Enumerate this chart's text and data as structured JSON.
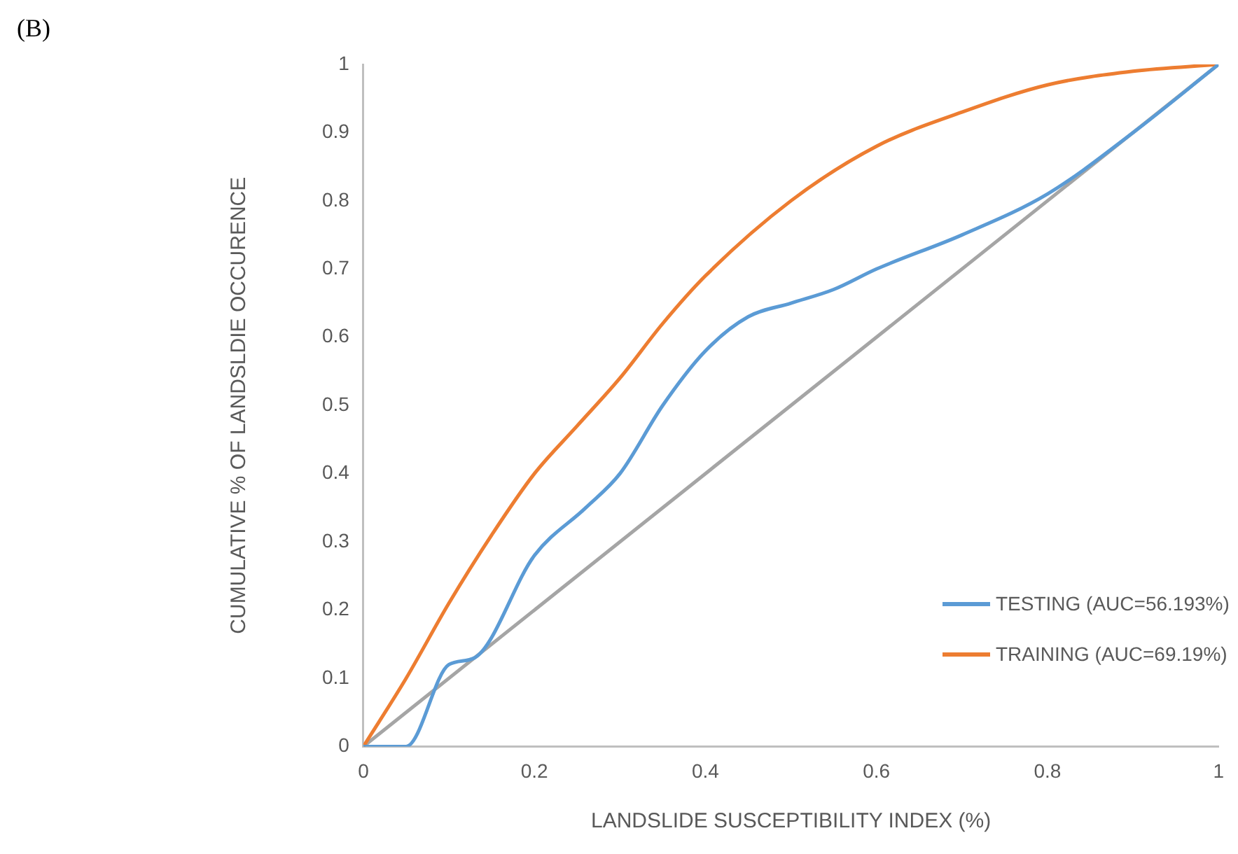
{
  "chart_data": {
    "type": "line",
    "xlabel": "LANDSLIDE SUSCEPTIBILITY INDEX (%)",
    "ylabel": "CUMULATIVE % OF LANDSLDIE OCCURENCE",
    "annotations": [
      "(B)"
    ],
    "xlim": [
      0,
      1
    ],
    "xticks": [
      0,
      0.2,
      0.4,
      0.6,
      0.8,
      1
    ],
    "ylim": [
      0,
      1
    ],
    "yticks": [
      0,
      0.1,
      0.2,
      0.3,
      0.4,
      0.5,
      0.6,
      0.7,
      0.8,
      0.9,
      1
    ],
    "grid": false,
    "legend": "bottom right",
    "marker": "none",
    "line_style": "solid",
    "series": [
      {
        "name": "TESTING (AUC=56.193%)",
        "color": "#5b9bd5",
        "x": [
          0,
          0.05,
          0.1,
          0.13,
          0.2,
          0.26,
          0.3,
          0.35,
          0.4,
          0.45,
          0.5,
          0.55,
          0.6,
          0.7,
          0.8,
          0.9,
          1
        ],
        "values": [
          0,
          0,
          0.12,
          0.13,
          0.28,
          0.35,
          0.4,
          0.5,
          0.58,
          0.63,
          0.65,
          0.67,
          0.7,
          0.75,
          0.81,
          0.9,
          1
        ]
      },
      {
        "name": "TRAINING (AUC=69.19%)",
        "color": "#ed7d31",
        "x": [
          0,
          0.05,
          0.1,
          0.15,
          0.2,
          0.25,
          0.3,
          0.35,
          0.4,
          0.5,
          0.6,
          0.7,
          0.8,
          0.9,
          1
        ],
        "values": [
          0,
          0.1,
          0.21,
          0.31,
          0.4,
          0.47,
          0.54,
          0.62,
          0.69,
          0.8,
          0.88,
          0.93,
          0.97,
          0.99,
          1
        ]
      },
      {
        "color": "#a5a5a5",
        "x": [
          0,
          1
        ],
        "values": [
          0,
          1
        ]
      }
    ]
  }
}
